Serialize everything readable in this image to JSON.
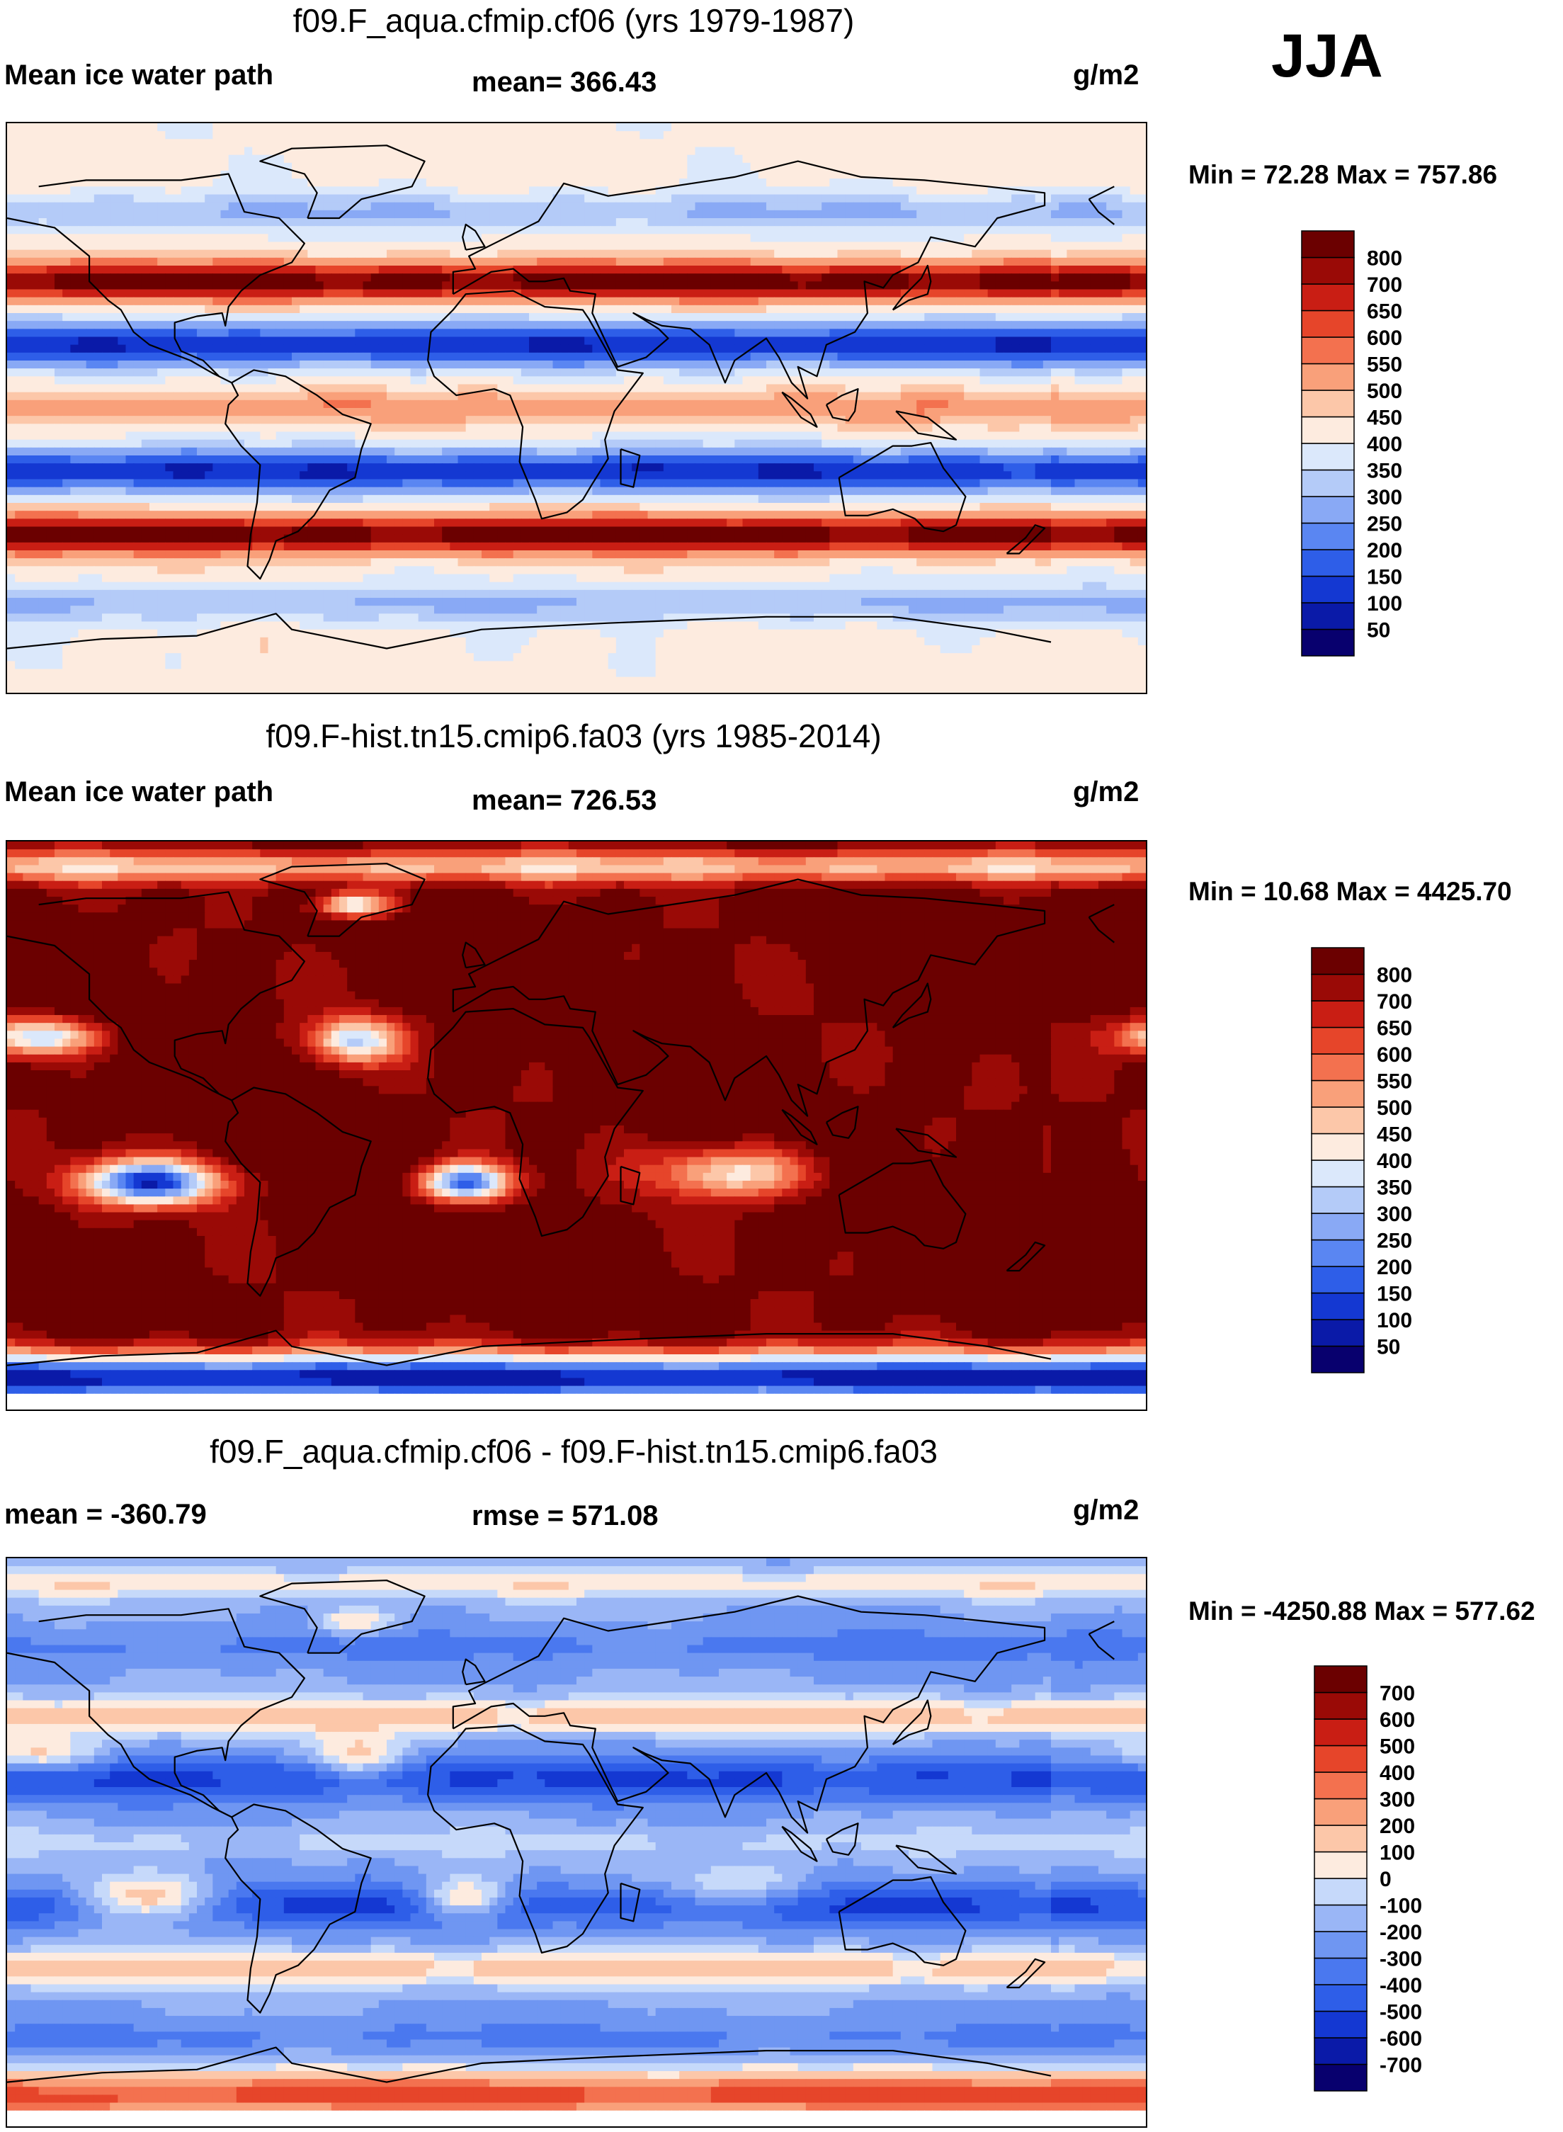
{
  "season": "JJA",
  "chart_data": [
    {
      "type": "heatmap",
      "title": "f09.F_aqua.cfmip.cf06 (yrs 1979-1987)",
      "left_label": "Mean ice water path",
      "center_label": "mean= 366.43",
      "units": "g/m2",
      "minmax": "Min =  72.28 Max = 757.86",
      "mean": 366.43,
      "min": 72.28,
      "max": 757.86,
      "colorbar": {
        "labels": [
          "50",
          "100",
          "150",
          "200",
          "250",
          "300",
          "350",
          "400",
          "450",
          "500",
          "550",
          "600",
          "650",
          "700",
          "800"
        ],
        "colors": [
          "#08006e",
          "#0a1aa8",
          "#1438d2",
          "#2e5ee8",
          "#5a86f2",
          "#89a9f5",
          "#b4cbf8",
          "#dbe8fb",
          "#fdebdf",
          "#fcc7a9",
          "#f9a07a",
          "#f3714f",
          "#e6452a",
          "#c91e14",
          "#9a0a06",
          "#6b0000"
        ]
      },
      "field": "ice water path zonal bands (aquaplanet)"
    },
    {
      "type": "heatmap",
      "title": "f09.F-hist.tn15.cmip6.fa03 (yrs 1985-2014)",
      "left_label": "Mean ice water path",
      "center_label": "mean= 726.53",
      "units": "g/m2",
      "minmax": "Min =  10.68 Max = 4425.70",
      "mean": 726.53,
      "min": 10.68,
      "max": 4425.7,
      "colorbar": {
        "labels": [
          "50",
          "100",
          "150",
          "200",
          "250",
          "300",
          "350",
          "400",
          "450",
          "500",
          "550",
          "600",
          "650",
          "700",
          "800"
        ],
        "colors": [
          "#08006e",
          "#0a1aa8",
          "#1438d2",
          "#2e5ee8",
          "#5a86f2",
          "#89a9f5",
          "#b4cbf8",
          "#dbe8fb",
          "#fdebdf",
          "#fcc7a9",
          "#f9a07a",
          "#f3714f",
          "#e6452a",
          "#c91e14",
          "#9a0a06",
          "#6b0000"
        ]
      },
      "field": "ice water path historical (land/ocean)"
    },
    {
      "type": "heatmap",
      "title": "f09.F_aqua.cfmip.cf06 - f09.F-hist.tn15.cmip6.fa03",
      "left_label": "mean = -360.79",
      "center_label": "rmse = 571.08",
      "units": "g/m2",
      "minmax": "Min = -4250.88 Max = 577.62",
      "mean": -360.79,
      "rmse": 571.08,
      "min": -4250.88,
      "max": 577.62,
      "colorbar": {
        "labels": [
          "-700",
          "-600",
          "-500",
          "-400",
          "-300",
          "-200",
          "-100",
          "0",
          "100",
          "200",
          "300",
          "400",
          "500",
          "600",
          "700"
        ],
        "colors": [
          "#08006e",
          "#0a1aa8",
          "#1438d2",
          "#2e5ee8",
          "#4a78ef",
          "#6f96f2",
          "#9ab6f6",
          "#c6d9fa",
          "#fdebdf",
          "#fcc7a9",
          "#f9a07a",
          "#f3714f",
          "#e6452a",
          "#c91e14",
          "#9a0a06",
          "#6b0000"
        ]
      },
      "field": "difference aquaplanet minus historical"
    }
  ]
}
